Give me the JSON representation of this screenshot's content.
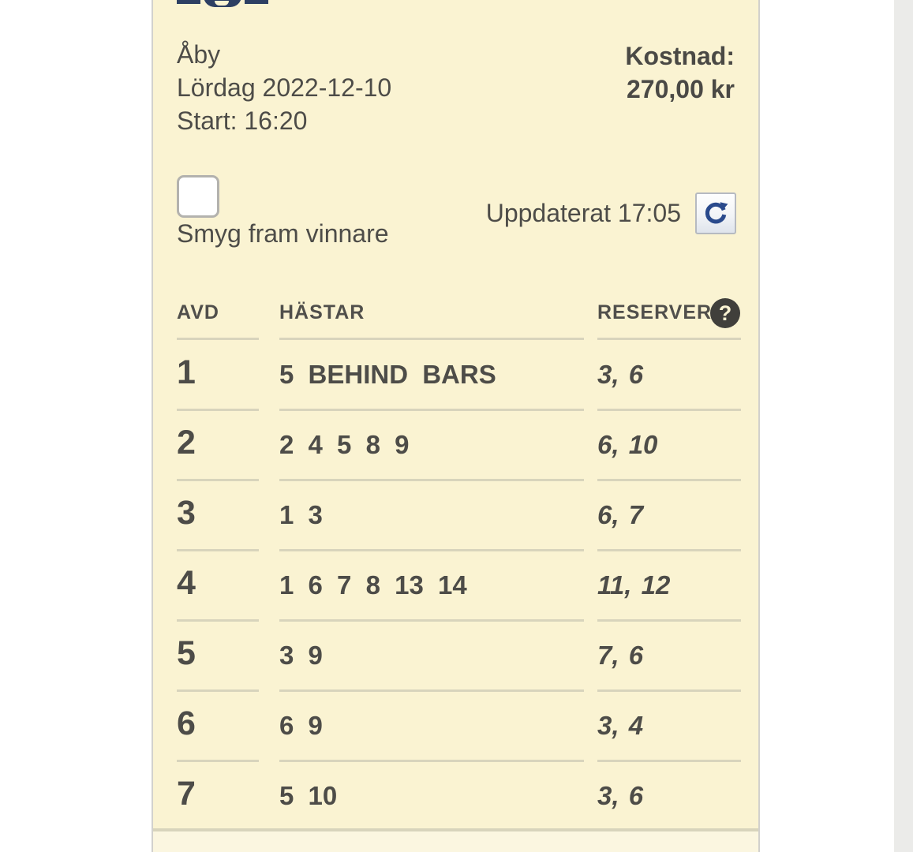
{
  "colors": {
    "card_background": "#faf3d2",
    "footer_background": "#fbf6e0",
    "text": "#4d4c48",
    "divider": "#d8d4bc",
    "logo_navy": "#2d3f63",
    "refresh_icon_navy": "#2a4a8c",
    "help_icon_background": "#403f3b",
    "scroll_strip": "#ebebe9"
  },
  "card": {
    "logo_icon": "partially-cropped-logo",
    "meeting": {
      "track": "Åby",
      "date": "Lördag 2022-12-10",
      "start": "Start: 16:20"
    },
    "cost": {
      "label": "Kostnad:",
      "value": "270,00 kr"
    },
    "smyg": {
      "label": "Smyg fram vinnare",
      "checked": false
    },
    "updated": {
      "text": "Uppdaterat 17:05",
      "refresh_icon": "refresh-arrow"
    },
    "table": {
      "columns": {
        "avd": "AVD",
        "hastar": "HÄSTAR",
        "reserver": "RESERVER"
      },
      "help_icon_glyph": "?",
      "rows": [
        {
          "avd": "1",
          "hastar": "5 BEHIND BARS",
          "reserver": "3, 6"
        },
        {
          "avd": "2",
          "hastar": "2 4 5 8 9",
          "reserver": "6, 10"
        },
        {
          "avd": "3",
          "hastar": "1 3",
          "reserver": "6, 7"
        },
        {
          "avd": "4",
          "hastar": "1 6 7 8 13 14",
          "reserver": "11, 12"
        },
        {
          "avd": "5",
          "hastar": "3 9",
          "reserver": "7, 6"
        },
        {
          "avd": "6",
          "hastar": "6 9",
          "reserver": "3, 4"
        },
        {
          "avd": "7",
          "hastar": "5 10",
          "reserver": "3, 6"
        }
      ]
    }
  }
}
